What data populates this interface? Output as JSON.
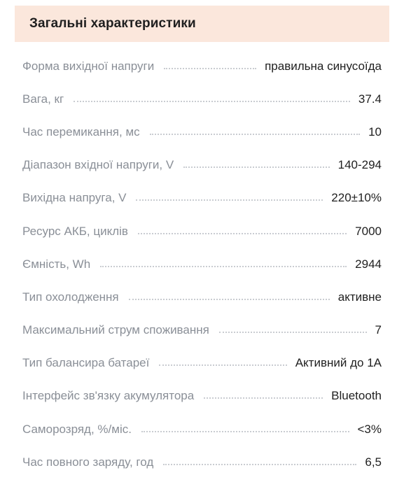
{
  "header": {
    "title": "Загальні характеристики"
  },
  "specs": [
    {
      "label": "Форма вихідної напруги",
      "value": "правильна синусоїда"
    },
    {
      "label": "Вага, кг",
      "value": "37.4"
    },
    {
      "label": "Час перемикання, мс",
      "value": "10"
    },
    {
      "label": "Діапазон вхідної напруги, V",
      "value": "140-294"
    },
    {
      "label": "Вихідна напруга, V",
      "value": "220±10%"
    },
    {
      "label": "Ресурс АКБ, циклів",
      "value": "7000"
    },
    {
      "label": "Ємність, Wh",
      "value": "2944"
    },
    {
      "label": "Тип охолодження",
      "value": "активне"
    },
    {
      "label": "Максимальний струм споживання",
      "value": "7"
    },
    {
      "label": "Тип балансира батареї",
      "value": "Активний до 1А"
    },
    {
      "label": "Інтерфейс зв'язку акумулятора",
      "value": "Bluetooth"
    },
    {
      "label": "Саморозряд, %/міс.",
      "value": "<3%"
    },
    {
      "label": "Час повного заряду, год",
      "value": "6,5"
    }
  ],
  "colors": {
    "header_bg": "#fbe7dc",
    "label": "#8a8f97",
    "value": "#1f1f1f"
  }
}
